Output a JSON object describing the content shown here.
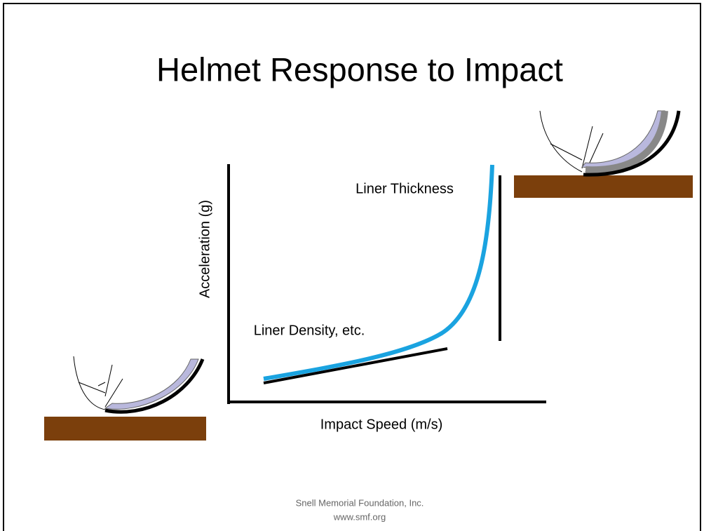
{
  "slide": {
    "title": "Helmet Response to Impact",
    "diagram": {
      "y_axis_label": "Acceleration (g)",
      "x_axis_label": "Impact Speed (m/s)",
      "annotations": [
        "Liner Thickness",
        "Liner Density, etc."
      ]
    },
    "footer": [
      "Snell Memorial Foundation, Inc.",
      "www.smf.org"
    ]
  }
}
